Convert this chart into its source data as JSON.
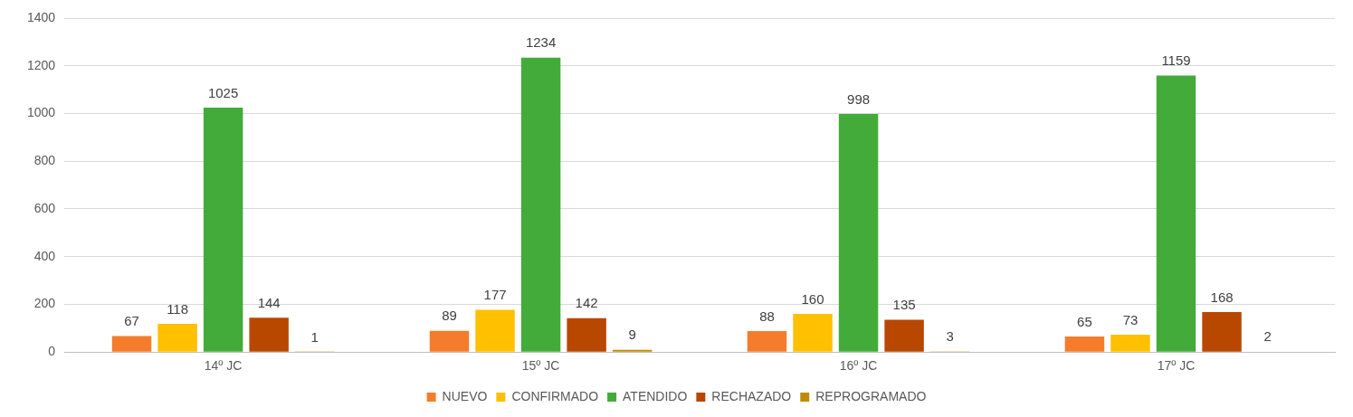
{
  "chart_data": {
    "type": "bar",
    "categories": [
      "14º JC",
      "15º JC",
      "16º JC",
      "17º JC"
    ],
    "series": [
      {
        "name": "NUEVO",
        "color": "#f57c2b",
        "values": [
          67,
          89,
          88,
          65
        ]
      },
      {
        "name": "CONFIRMADO",
        "color": "#ffc000",
        "values": [
          118,
          177,
          160,
          73
        ]
      },
      {
        "name": "ATENDIDO",
        "color": "#43ab3a",
        "values": [
          1025,
          1234,
          998,
          1159
        ]
      },
      {
        "name": "RECHAZADO",
        "color": "#b84700",
        "values": [
          144,
          142,
          135,
          168
        ]
      },
      {
        "name": "REPROGRAMADO",
        "color": "#c08b00",
        "values": [
          1,
          9,
          3,
          2
        ]
      }
    ],
    "ylim": [
      0,
      1400
    ],
    "yticks": [
      0,
      200,
      400,
      600,
      800,
      1000,
      1200,
      1400
    ],
    "grid": "y",
    "legend": "bottom",
    "data_labels": true
  }
}
